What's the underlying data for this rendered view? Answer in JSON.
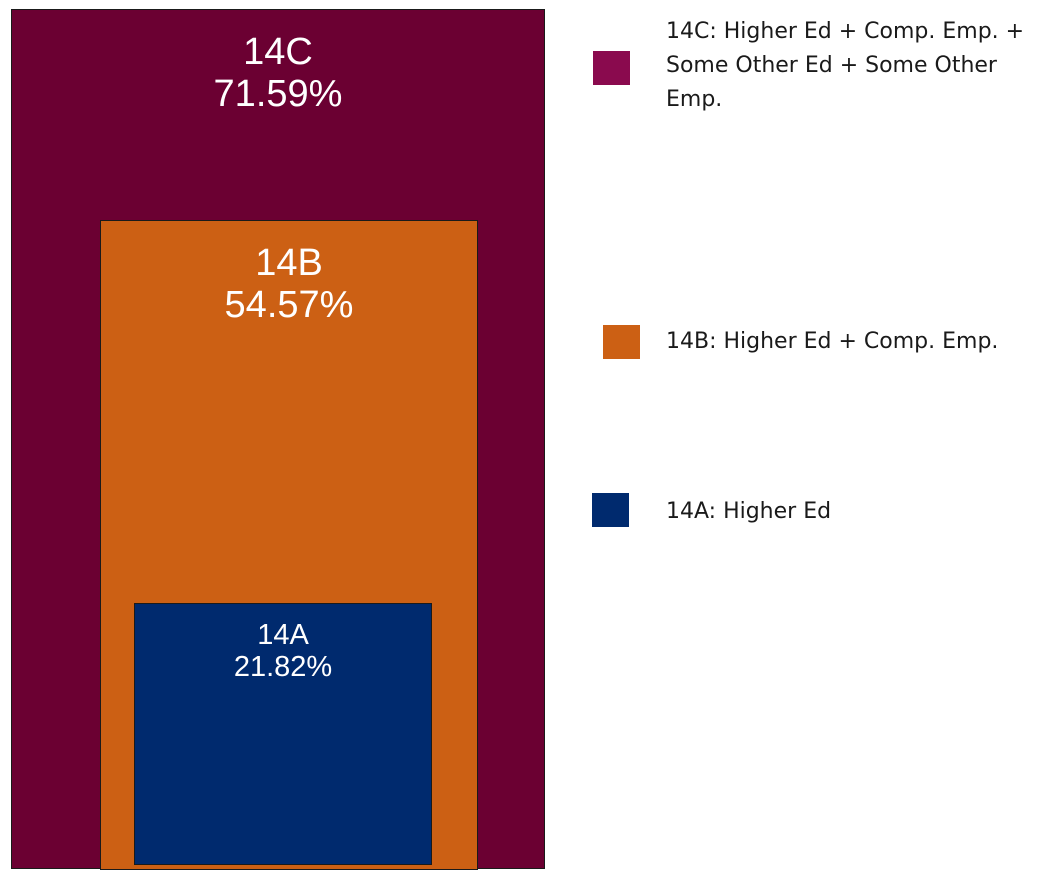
{
  "boxes": {
    "c": {
      "id": "14C",
      "value": "71.59%",
      "color": "#6b0032"
    },
    "b": {
      "id": "14B",
      "value": "54.57%",
      "color": "#cc6014"
    },
    "a": {
      "id": "14A",
      "value": "21.82%",
      "color": "#002a6e"
    }
  },
  "legend": [
    {
      "label": "14C: Higher Ed + Comp. Emp. + Some Other Ed + Some Other Emp.",
      "color": "#8a0a4e"
    },
    {
      "label": "14B: Higher Ed + Comp. Emp.",
      "color": "#cc6014"
    },
    {
      "label": "14A: Higher Ed",
      "color": "#002a6e"
    }
  ]
}
